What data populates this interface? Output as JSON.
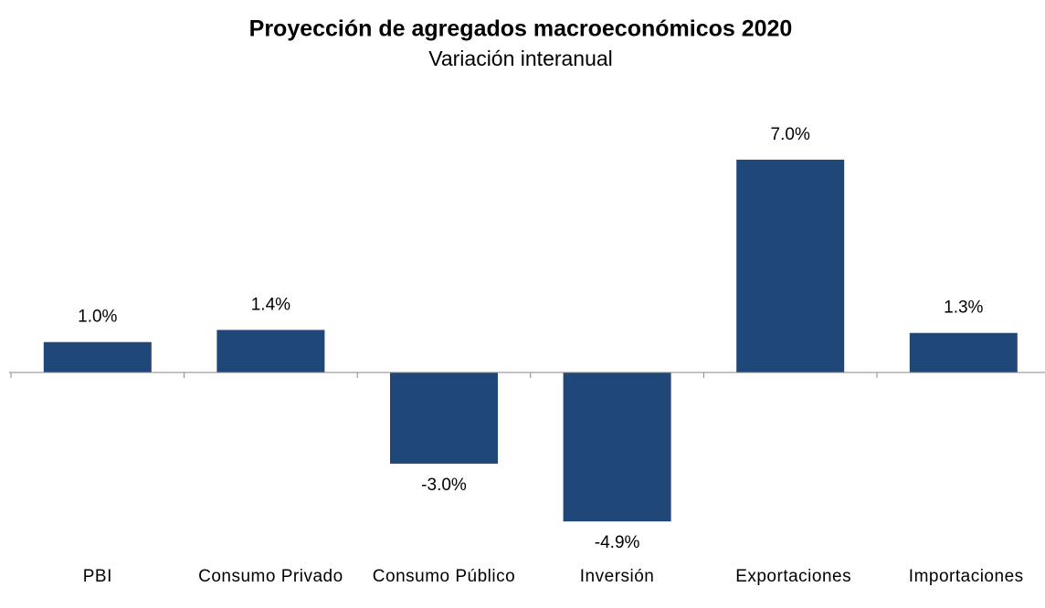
{
  "chart_data": {
    "type": "bar",
    "title": "Proyección de agregados macroeconómicos 2020",
    "subtitle": "Variación interanual",
    "categories": [
      "PBI",
      "Consumo Privado",
      "Consumo Público",
      "Inversión",
      "Exportaciones",
      "Importaciones"
    ],
    "values": [
      1.0,
      1.4,
      -3.0,
      -4.9,
      7.0,
      1.3
    ],
    "value_labels": [
      "1.0%",
      "1.4%",
      "-3.0%",
      "-4.9%",
      "7.0%",
      "1.3%"
    ],
    "color": "#1f4778"
  }
}
